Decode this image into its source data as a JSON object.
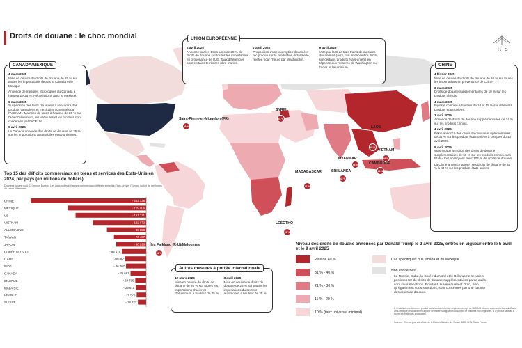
{
  "page": {
    "title": "Droits de douane : le choc mondial"
  },
  "logo": {
    "text": "IRIS"
  },
  "colors": {
    "cat40plus": "#b3262b",
    "cat31_40": "#cf5058",
    "cat21_30": "#e07a84",
    "cat11_20": "#eeaab1",
    "cat10": "#f6d6d8",
    "canada_mexico": "#f2dcdc",
    "not_concerned": "#e3e3e3",
    "usa": "#1e2a44",
    "ocean": "#ffffff"
  },
  "canada_mexico_box": {
    "title": "CANADA/MEXIQUE",
    "entries": [
      {
        "date": "4 mars 2025",
        "text": "Mise en oeuvre de droits de douane de 25 % sur toutes les importations depuis le Canada et le Mexique"
      },
      {
        "date": "",
        "text": "Annonce de mesures réciproques du Canada à hauteur de 25 %. Négociations avec le Mexique."
      },
      {
        "date": "6 mars 2025",
        "text": "Suspension des tarifs douaniers à l'encontre des produits canadiens et mexicains concernés par l'ACEUM¹. Maintien de taxes à hauteur de 25 % sur l'acier/l'aluminium, les véhicules et les produits non concernés par l'ACEUM."
      },
      {
        "date": "9 avril 2025",
        "text": "Le Canada annonce des droits de douane de 25 % sur les importations automobiles états-uniennes."
      }
    ]
  },
  "eu_box": {
    "title": "UNION EUROPÉENNE",
    "entries": [
      {
        "date": "2 avril 2025",
        "text": "Annonce par les États-Unis de 20 % de droits de douane sur toutes les importations en provenance de l'UE. Taux différenciés pour certains territoires ultra-marins."
      },
      {
        "date": "7 avril 2025",
        "text": "Proposition d'une exemption douanière réciproque sur la production industrielle, rejetée pour l'heure par Washington."
      },
      {
        "date": "9 avril 2025",
        "text": "Vote par l'UE de trois trains de mesures douanières (avril, mai et décembre 2025) sur certains produits états-uniens en réponse aux mesures de Washington sur l'acier et l'aluminium."
      }
    ]
  },
  "china_box": {
    "title": "CHINE",
    "entries": [
      {
        "date": "4 février 2025",
        "text": "Mise en oeuvre de droits de douane de 10 % sur toutes les importations en provenance de Chine."
      },
      {
        "date": "3 mars 2025",
        "text": "Droits de douane supplémentaires de 10 % sur les produits chinois."
      },
      {
        "date": "4 mars 2025",
        "text": "Riposte chinoise à hauteur de 10 et 15 % sur différents produits états-uniens."
      },
      {
        "date": "3 avril 2025",
        "text": "Annonce de droits de douane supplémentaires de 34 % sur les produits chinois."
      },
      {
        "date": "4 avril 2025",
        "text": "Pékin annonce des droits de douane supplémentaires de 34 % sur les produits états-uniens à compter du 10 avril 2025."
      },
      {
        "date": "9 avril 2025",
        "text": "Washington annonce des droits de douane supplémentaires de 50 % sur les produits chinois. Les États-Unis appliquent donc 104 % de droits de douane."
      },
      {
        "date": "",
        "text": "La Chine annonce passer ses droits de douane de 34 % à 84 % sur les produits états-uniens"
      }
    ]
  },
  "intl_box": {
    "title": "Autres mesures à portée internationale",
    "entries": [
      {
        "date": "12 mars 2025",
        "text": "Mise en oeuvre de droits de douane de 25 % sur toutes les importations d'acier et d'aluminium à hauteur de 25 %"
      },
      {
        "date": "3 avril 2025",
        "text": "Mise en oeuvre de droits de douane de 25 % sur toutes les importations du secteur automobile à hauteur de 25 %"
      }
    ]
  },
  "map_labels": {
    "saint_pierre": {
      "name": "Saint-Pierre-et-Miquelon (FR)",
      "value": "50 %"
    },
    "syrie": {
      "name": "SYRIE",
      "value": "41 %"
    },
    "laos": {
      "name": "LAOS",
      "value": "48 %"
    },
    "myanmar": {
      "name": "MYANMAR",
      "value": "44 %"
    },
    "vietnam": {
      "name": "VIÊTNAM",
      "value": "46 %"
    },
    "sri_lanka": {
      "name": "SRI LANKA",
      "value": "44 %"
    },
    "cambodge": {
      "name": "CAMBODGE",
      "value": "49 %"
    },
    "madagascar": {
      "name": "MADAGASCAR",
      "value": "47 %"
    },
    "lesotho": {
      "name": "LESOTHO",
      "value": "50 %"
    },
    "falkland": {
      "name": "Îles Falkland (R-U)/Malouines",
      "value": "41 %"
    }
  },
  "chart": {
    "title": "Top 15 des déficits commerciaux en biens et services des États-Unis en 2024, par pays (en millions de dollars)",
    "note": "Données issues du U.S. Census Bureau. Les calculs des échanges commerciaux diffèrent entre les États-Unis et l'Europe du fait de méthodes de calcul différentes."
  },
  "chart_data": {
    "type": "bar",
    "orientation": "horizontal",
    "categories": [
      "CHINE",
      "MEXIQUE",
      "UE",
      "VIÊTNAM",
      "ALLEMAGNE",
      "TAÏWAN",
      "JAPON",
      "CORÉE DU SUD",
      "ITALIE",
      "INDE",
      "CANADA",
      "IRLANDE",
      "MALAISIE",
      "FRANCE",
      "SUISSE"
    ],
    "values": [
      -263338,
      -179006,
      -161131,
      -122072,
      -89553,
      -73497,
      -68296,
      -55475,
      -48082,
      -46007,
      -35661,
      -24788,
      -23610,
      -21576,
      -18827
    ],
    "labels": [
      "- 263 338",
      "- 179 006",
      "- 161 131",
      "- 122 072",
      "- 89 553",
      "- 73 497",
      "- 68 296",
      "- 55 475",
      "- 48 082",
      "- 46 007",
      "- 35 661",
      "- 24 788",
      "- 23 610",
      "- 21 576",
      "- 18 827"
    ],
    "xlim": [
      -270000,
      0
    ]
  },
  "legend": {
    "title": "Niveau des droits de douane annoncés par Donald Trump le 2 avril 2025, entrés en vigueur entre le 5 avril et le 9 avril 2025",
    "items": [
      {
        "label": "Plus de 40 %",
        "color": "#b3262b"
      },
      {
        "label": "31 % - 40 %",
        "color": "#cf5058"
      },
      {
        "label": "21 % - 30 %",
        "color": "#e07a84"
      },
      {
        "label": "11 % - 20 %",
        "color": "#eeaab1"
      },
      {
        "label": "10 % (taux universel minimal)",
        "color": "#f6d6d8"
      }
    ],
    "items_right": [
      {
        "label": "Cas spécifiques du Canada et du Mexique",
        "color": "#f2dcdc"
      },
      {
        "label": "Non concernés",
        "color": "#e3e3e3"
      }
    ],
    "not_concerned_note": "La Russie, Cuba, la Corée du Nord et le Bélarus ne se voient pas imposer de droits de douane supplémentaires parce qu'ils sont sous sanctions. Pourtant, le Venezuela et l'Iran, bien qu'également sous sanctions, sont concernés par une hausse des droits de douane."
  },
  "footnote": "1. Produit/bien entièrement produit sur le territoire d'un ou de plusieurs pays de l'ACEUM (Accord commercial Canada-États-Unis-Mexique) exclusivement à partir de matières originaires ou à partir de matières non originaires, si le produit satisfait à toutes les exigences applicables.",
  "sources": "Sources : Census.gov, site officiel de la Maison-Blanche, Le Monde, BBC, CNN, Radio France"
}
